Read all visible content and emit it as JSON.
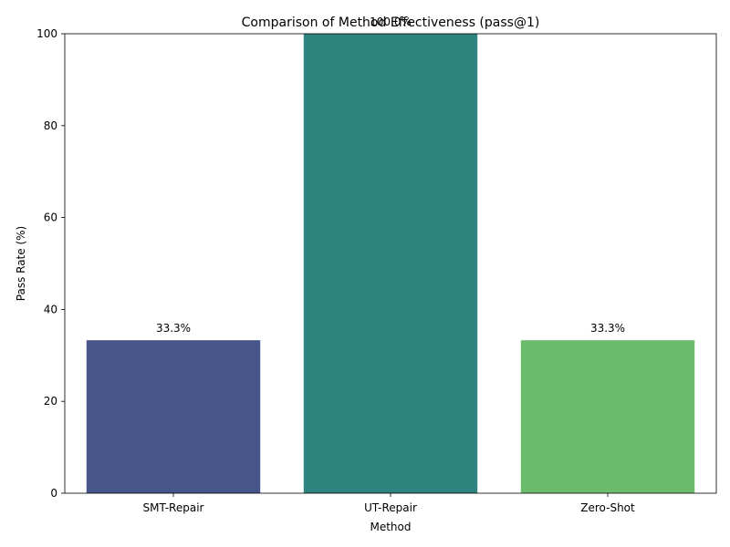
{
  "chart_data": {
    "type": "bar",
    "title": "Comparison of Method Effectiveness (pass@1)",
    "xlabel": "Method",
    "ylabel": "Pass Rate (%)",
    "categories": [
      "SMT-Repair",
      "UT-Repair",
      "Zero-Shot"
    ],
    "values": [
      33.3,
      100.0,
      33.3
    ],
    "data_labels": [
      "33.3%",
      "100.0%",
      "33.3%"
    ],
    "colors": [
      "#46568a",
      "#2e847f",
      "#6bbd6d"
    ],
    "ylim": [
      0,
      100
    ],
    "yticks": [
      0,
      20,
      40,
      60,
      80,
      100
    ],
    "ytick_labels": [
      "0",
      "20",
      "40",
      "60",
      "80",
      "100"
    ],
    "grid": false,
    "legend": "none"
  }
}
